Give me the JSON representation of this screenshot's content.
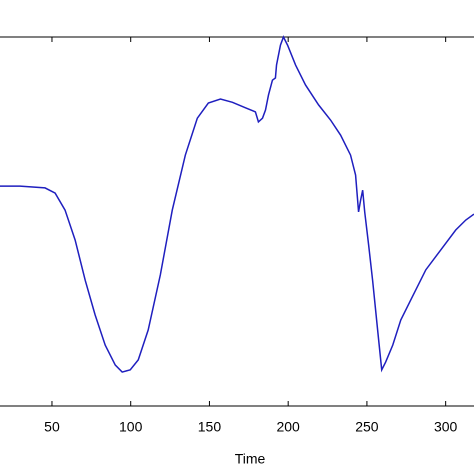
{
  "chart_data": {
    "type": "line",
    "xlabel": "Time",
    "x": [
      17.0,
      29.7,
      45.6,
      52.0,
      58.3,
      64.7,
      71.1,
      77.4,
      83.8,
      90.2,
      94.6,
      99.7,
      104.8,
      111.1,
      118.8,
      126.4,
      134.7,
      142.3,
      149.3,
      157.0,
      164.6,
      172.9,
      179.2,
      181.1,
      183.7,
      185.6,
      187.5,
      190.0,
      191.9,
      192.6,
      195.1,
      197.0,
      199.6,
      204.7,
      211.0,
      219.3,
      226.9,
      233.3,
      239.6,
      242.8,
      244.7,
      246.0,
      247.3,
      248.6,
      251.1,
      253.6,
      256.8,
      259.4,
      261.9,
      266.4,
      271.5,
      277.8,
      287.4,
      296.9,
      306.4,
      312.8,
      318.0
    ],
    "series": [
      {
        "color": "#1f1fbf",
        "values": [
          0.596,
          0.596,
          0.591,
          0.577,
          0.531,
          0.45,
          0.341,
          0.247,
          0.165,
          0.111,
          0.092,
          0.098,
          0.125,
          0.206,
          0.355,
          0.531,
          0.68,
          0.78,
          0.821,
          0.832,
          0.823,
          0.808,
          0.797,
          0.77,
          0.78,
          0.802,
          0.843,
          0.883,
          0.889,
          0.924,
          0.978,
          1.0,
          0.978,
          0.924,
          0.87,
          0.816,
          0.775,
          0.734,
          0.68,
          0.626,
          0.526,
          0.558,
          0.585,
          0.526,
          0.436,
          0.341,
          0.206,
          0.098,
          0.119,
          0.165,
          0.233,
          0.287,
          0.369,
          0.423,
          0.477,
          0.504,
          0.52
        ]
      }
    ],
    "xlim": [
      17,
      318
    ],
    "ylim": [
      0,
      1
    ],
    "xticks": [
      50,
      100,
      150,
      200,
      250,
      300
    ]
  }
}
